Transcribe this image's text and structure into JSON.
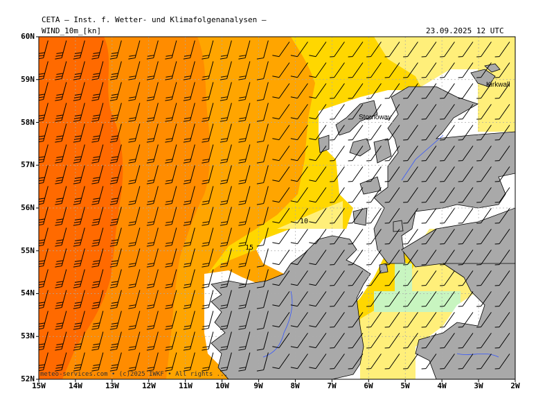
{
  "header": {
    "source_line": "CETA — Inst. f. Wetter- und Klimafolgenanalysen —",
    "variable": "WIND_10m_[kn]",
    "datetime": "23.09.2025 12 UTC"
  },
  "map": {
    "lat_labels": [
      "60N",
      "59N",
      "58N",
      "57N",
      "56N",
      "55N",
      "54N",
      "53N",
      "52N"
    ],
    "lon_labels": [
      "15W",
      "14W",
      "13W",
      "12W",
      "11W",
      "10W",
      "9W",
      "8W",
      "7W",
      "6W",
      "5W",
      "4W",
      "3W",
      "2W"
    ],
    "places": [
      "Stornoway",
      "Kirkwall"
    ],
    "contour_labels": [
      "10",
      "15"
    ],
    "watermark": "meteo-services.com • (c)2025 IWKF • All rights ...",
    "colors": {
      "land": "#a9a9a9",
      "water_bg": "#ffffff",
      "wind_gt25": "#ff6a00",
      "wind_20_25": "#ff8c00",
      "wind_15_20": "#ffa500",
      "wind_10_15": "#ffd700",
      "wind_5_10": "#ffef7a",
      "wind_lt5": "#c8f5c0",
      "river": "#3355ff"
    }
  }
}
